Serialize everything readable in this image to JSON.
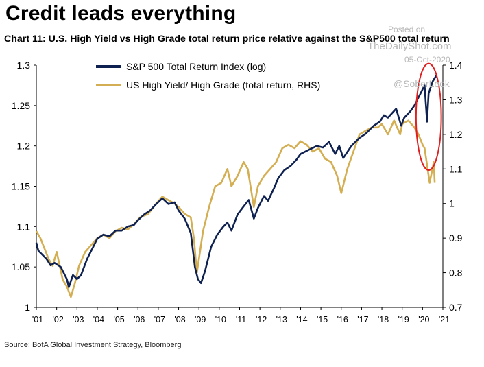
{
  "title": "Credit leads everything",
  "subtitle": "Chart 11: U.S. High Yield vs High Grade total return price relative against the S&P500 total return",
  "source": "Source: BofA Global Investment Strategy, Bloomberg",
  "watermark": {
    "posted_on": "Posted on",
    "site": "TheDailyShot.com",
    "date": "05-Oct-2020",
    "handle": "@SoberLook"
  },
  "chart_data": {
    "type": "line",
    "left_axis": {
      "ticks": [
        "1.3",
        "1.25",
        "1.2",
        "1.15",
        "1.1",
        "1.05",
        "1"
      ],
      "range": [
        1.0,
        1.3
      ]
    },
    "right_axis": {
      "ticks": [
        "1.4",
        "1.3",
        "1.2",
        "1.1",
        "1",
        "0.9",
        "0.8",
        "0.7"
      ],
      "range": [
        0.7,
        1.4
      ]
    },
    "x_ticks": [
      "'01",
      "'02",
      "'03",
      "'04",
      "'05",
      "'06",
      "'07",
      "'08",
      "'09",
      "'10",
      "'11",
      "'12",
      "'13",
      "'14",
      "'15",
      "'16",
      "'17",
      "'18",
      "'19",
      "'20",
      "'21"
    ],
    "x_range": [
      2001.0,
      2021.0
    ],
    "highlight": {
      "shape": "ellipse",
      "color": "#e02020",
      "x_center": 2020.3,
      "y_center_left": 1.236,
      "x_radius": 0.62,
      "y_radius_left": 0.066
    },
    "series": [
      {
        "name": "S&P 500 Total Return Index (log)",
        "axis": "left",
        "color": "#0e2150",
        "x": [
          2001.0,
          2001.1,
          2001.3,
          2001.5,
          2001.7,
          2001.9,
          2002.2,
          2002.5,
          2002.6,
          2002.8,
          2003.0,
          2003.2,
          2003.5,
          2003.8,
          2004.0,
          2004.3,
          2004.6,
          2004.9,
          2005.2,
          2005.5,
          2005.8,
          2006.0,
          2006.3,
          2006.6,
          2006.9,
          2007.2,
          2007.5,
          2007.8,
          2008.0,
          2008.3,
          2008.6,
          2008.8,
          2008.95,
          2009.1,
          2009.3,
          2009.6,
          2009.9,
          2010.2,
          2010.4,
          2010.6,
          2010.9,
          2011.2,
          2011.45,
          2011.7,
          2011.9,
          2012.2,
          2012.4,
          2012.7,
          2012.9,
          2013.2,
          2013.5,
          2013.8,
          2014.0,
          2014.4,
          2014.8,
          2015.1,
          2015.4,
          2015.7,
          2015.9,
          2016.1,
          2016.5,
          2016.9,
          2017.2,
          2017.6,
          2017.9,
          2018.1,
          2018.3,
          2018.7,
          2018.95,
          2019.1,
          2019.4,
          2019.6,
          2019.9,
          2020.1,
          2020.22,
          2020.3,
          2020.5,
          2020.7
        ],
        "y": [
          1.08,
          1.07,
          1.065,
          1.06,
          1.052,
          1.055,
          1.05,
          1.035,
          1.025,
          1.04,
          1.035,
          1.04,
          1.06,
          1.075,
          1.085,
          1.09,
          1.088,
          1.095,
          1.095,
          1.1,
          1.102,
          1.108,
          1.115,
          1.12,
          1.128,
          1.135,
          1.128,
          1.13,
          1.12,
          1.11,
          1.092,
          1.05,
          1.035,
          1.03,
          1.045,
          1.075,
          1.09,
          1.1,
          1.105,
          1.095,
          1.115,
          1.125,
          1.133,
          1.11,
          1.123,
          1.138,
          1.132,
          1.148,
          1.16,
          1.17,
          1.175,
          1.183,
          1.19,
          1.195,
          1.2,
          1.198,
          1.205,
          1.19,
          1.2,
          1.185,
          1.2,
          1.21,
          1.215,
          1.225,
          1.23,
          1.238,
          1.235,
          1.246,
          1.225,
          1.235,
          1.243,
          1.25,
          1.265,
          1.275,
          1.23,
          1.265,
          1.28,
          1.288
        ]
      },
      {
        "name": "US High Yield/ High Grade (total return, RHS)",
        "axis": "right",
        "color": "#d4ae52",
        "x": [
          2001.0,
          2001.2,
          2001.4,
          2001.6,
          2001.8,
          2002.0,
          2002.3,
          2002.5,
          2002.7,
          2002.9,
          2003.1,
          2003.4,
          2003.7,
          2004.0,
          2004.3,
          2004.6,
          2004.9,
          2005.2,
          2005.5,
          2005.8,
          2006.1,
          2006.5,
          2006.9,
          2007.2,
          2007.5,
          2007.8,
          2008.0,
          2008.3,
          2008.6,
          2008.75,
          2008.9,
          2009.0,
          2009.2,
          2009.5,
          2009.8,
          2010.1,
          2010.4,
          2010.6,
          2010.9,
          2011.2,
          2011.4,
          2011.7,
          2011.9,
          2012.2,
          2012.5,
          2012.8,
          2013.1,
          2013.4,
          2013.7,
          2014.0,
          2014.3,
          2014.6,
          2014.9,
          2015.2,
          2015.5,
          2015.8,
          2016.0,
          2016.3,
          2016.6,
          2016.9,
          2017.2,
          2017.5,
          2017.8,
          2018.0,
          2018.3,
          2018.6,
          2018.9,
          2019.0,
          2019.3,
          2019.6,
          2019.8,
          2020.0,
          2020.1,
          2020.2,
          2020.35,
          2020.45,
          2020.55,
          2020.6
        ],
        "y": [
          0.92,
          0.9,
          0.87,
          0.84,
          0.82,
          0.86,
          0.78,
          0.76,
          0.73,
          0.77,
          0.82,
          0.86,
          0.88,
          0.9,
          0.91,
          0.9,
          0.92,
          0.93,
          0.925,
          0.94,
          0.96,
          0.97,
          1.0,
          1.02,
          1.01,
          1.0,
          0.99,
          0.97,
          0.96,
          0.9,
          0.8,
          0.84,
          0.92,
          0.99,
          1.05,
          1.06,
          1.1,
          1.05,
          1.08,
          1.12,
          1.1,
          0.99,
          1.05,
          1.08,
          1.1,
          1.12,
          1.16,
          1.17,
          1.16,
          1.18,
          1.17,
          1.15,
          1.16,
          1.13,
          1.12,
          1.08,
          1.03,
          1.1,
          1.15,
          1.2,
          1.21,
          1.22,
          1.22,
          1.23,
          1.2,
          1.24,
          1.2,
          1.23,
          1.24,
          1.22,
          1.2,
          1.17,
          1.16,
          1.12,
          1.06,
          1.09,
          1.12,
          1.06
        ]
      }
    ]
  }
}
